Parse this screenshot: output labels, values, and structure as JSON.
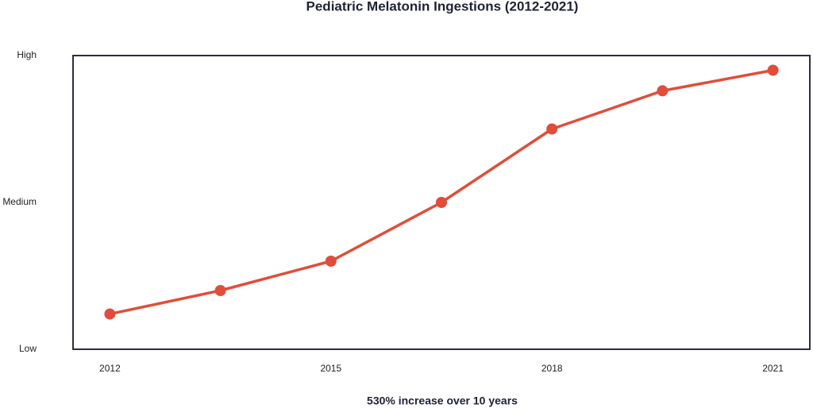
{
  "chart_data": {
    "type": "line",
    "title": "Pediatric Melatonin Ingestions (2012-2021)",
    "annotation": "530% increase over 10 years",
    "x": [
      2012,
      2013.5,
      2015,
      2016.5,
      2018,
      2019.5,
      2021
    ],
    "series": [
      {
        "name": "Pediatric melatonin ingestions",
        "color": "#e04e3b",
        "values": [
          12,
          20,
          30,
          50,
          75,
          88,
          95
        ]
      }
    ],
    "xlim": [
      2011.5,
      2021.5
    ],
    "xticks": [
      2012,
      2015,
      2018,
      2021
    ],
    "ylim": [
      0,
      100
    ],
    "yticks": [
      {
        "value": 0,
        "label": "Low"
      },
      {
        "value": 50,
        "label": "Medium"
      },
      {
        "value": 100,
        "label": "High"
      }
    ],
    "grid": false
  }
}
